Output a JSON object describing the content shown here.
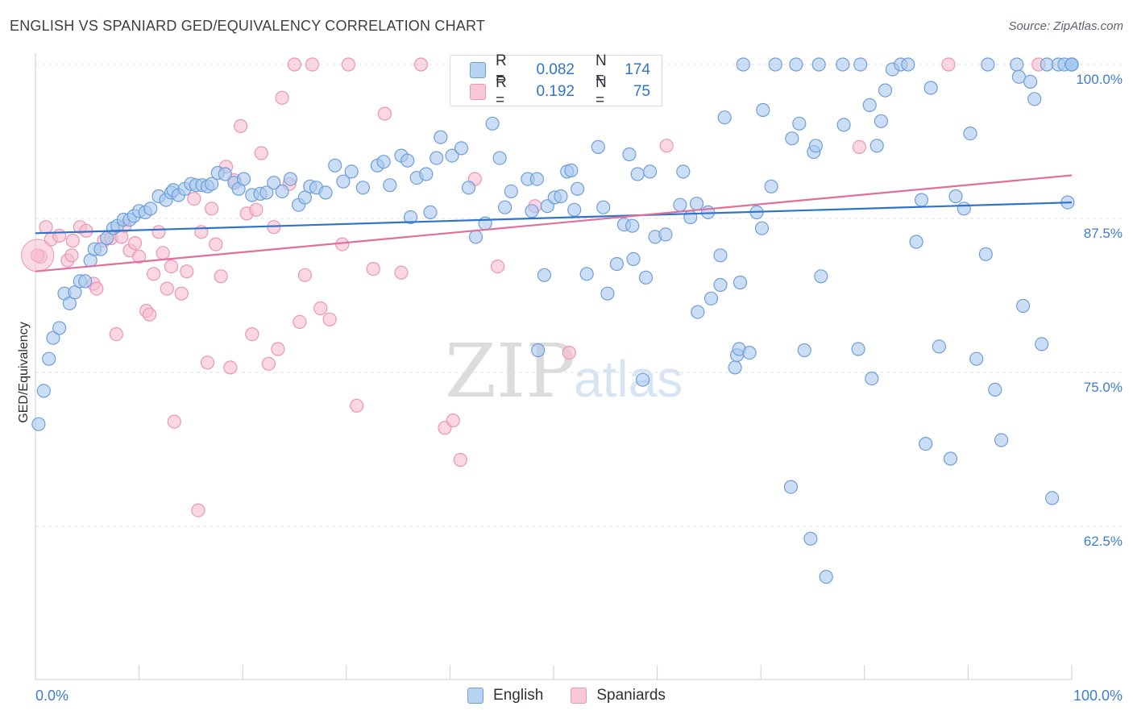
{
  "title": "ENGLISH VS SPANIARD GED/EQUIVALENCY CORRELATION CHART",
  "source": "Source: ZipAtlas.com",
  "watermark": {
    "zip": "ZIP",
    "atlas": "atlas"
  },
  "colors": {
    "english_fill": "#a9c8ee",
    "english_stroke": "#6e9fd8",
    "english_line": "#2f74cc",
    "spaniards_fill": "#f6bdd0",
    "spaniards_stroke": "#eb95b3",
    "spaniards_line": "#e0709a",
    "axis_text": "#3d7dd1",
    "grid": "#dde1e8"
  },
  "legend": {
    "items": [
      {
        "r_label": "R =",
        "r_value": "0.082",
        "n_label": "N =",
        "n_value": "174"
      },
      {
        "r_label": "R =",
        "r_value": "0.192",
        "n_label": "N =",
        "n_value": "75"
      }
    ]
  },
  "bottom_legend": {
    "english": "English",
    "spaniards": "Spaniards"
  },
  "chart_data": {
    "type": "scatter",
    "title": "ENGLISH VS SPANIARD GED/EQUIVALENCY CORRELATION CHART",
    "xlabel": "",
    "ylabel": "GED/Equivalency",
    "xlim": [
      0,
      100
    ],
    "ylim": [
      50,
      101
    ],
    "x_tick_labels": [
      "0.0%",
      "100.0%"
    ],
    "y_ticks": [
      62.5,
      75.0,
      87.5,
      100.0
    ],
    "y_tick_labels": [
      "62.5%",
      "75.0%",
      "87.5%",
      "100.0%"
    ],
    "grid": true,
    "legend_position": "top-center",
    "series": [
      {
        "name": "English",
        "r": 0.082,
        "n": 174,
        "trend": {
          "x": [
            0,
            100
          ],
          "y": [
            86.3,
            88.8
          ]
        },
        "points": [
          [
            0.3,
            70.8
          ],
          [
            0.8,
            73.5
          ],
          [
            1.3,
            76.1
          ],
          [
            1.7,
            77.8
          ],
          [
            2.3,
            78.6
          ],
          [
            2.8,
            81.4
          ],
          [
            3.3,
            80.6
          ],
          [
            3.8,
            81.5
          ],
          [
            4.3,
            82.4
          ],
          [
            4.8,
            82.4
          ],
          [
            5.3,
            84.1
          ],
          [
            5.7,
            85.0
          ],
          [
            6.3,
            85.0
          ],
          [
            6.9,
            85.9
          ],
          [
            7.5,
            86.7
          ],
          [
            7.9,
            86.9
          ],
          [
            8.5,
            87.4
          ],
          [
            9.1,
            87.4
          ],
          [
            9.5,
            87.7
          ],
          [
            10.0,
            88.1
          ],
          [
            10.6,
            88.0
          ],
          [
            11.1,
            88.3
          ],
          [
            11.9,
            89.3
          ],
          [
            12.6,
            89.0
          ],
          [
            13.1,
            89.6
          ],
          [
            13.3,
            89.8
          ],
          [
            13.8,
            89.4
          ],
          [
            14.4,
            89.9
          ],
          [
            15.0,
            90.3
          ],
          [
            15.5,
            90.2
          ],
          [
            16.1,
            90.2
          ],
          [
            16.6,
            90.1
          ],
          [
            17.0,
            90.3
          ],
          [
            17.6,
            91.2
          ],
          [
            18.3,
            91.1
          ],
          [
            19.2,
            90.4
          ],
          [
            19.6,
            89.9
          ],
          [
            20.1,
            90.7
          ],
          [
            20.9,
            89.4
          ],
          [
            21.7,
            89.5
          ],
          [
            22.3,
            89.6
          ],
          [
            23.0,
            90.4
          ],
          [
            23.8,
            89.7
          ],
          [
            24.6,
            90.7
          ],
          [
            25.4,
            88.6
          ],
          [
            26.0,
            89.2
          ],
          [
            26.5,
            90.1
          ],
          [
            27.1,
            90.0
          ],
          [
            28.0,
            89.6
          ],
          [
            28.9,
            91.8
          ],
          [
            29.7,
            90.5
          ],
          [
            30.5,
            91.3
          ],
          [
            31.6,
            90.0
          ],
          [
            33.0,
            91.8
          ],
          [
            33.6,
            92.1
          ],
          [
            34.2,
            90.2
          ],
          [
            35.3,
            92.6
          ],
          [
            35.9,
            92.2
          ],
          [
            36.2,
            87.6
          ],
          [
            36.8,
            90.8
          ],
          [
            37.7,
            91.1
          ],
          [
            38.1,
            88.0
          ],
          [
            38.7,
            92.4
          ],
          [
            39.1,
            94.1
          ],
          [
            40.2,
            92.6
          ],
          [
            41.1,
            93.2
          ],
          [
            41.8,
            90.0
          ],
          [
            42.5,
            86.0
          ],
          [
            43.4,
            87.1
          ],
          [
            44.1,
            95.2
          ],
          [
            44.8,
            92.4
          ],
          [
            45.3,
            88.4
          ],
          [
            45.9,
            89.7
          ],
          [
            47.5,
            90.7
          ],
          [
            47.9,
            88.1
          ],
          [
            48.4,
            90.7
          ],
          [
            48.5,
            76.8
          ],
          [
            49.1,
            82.9
          ],
          [
            49.4,
            88.5
          ],
          [
            50.1,
            89.2
          ],
          [
            50.7,
            89.3
          ],
          [
            51.3,
            91.3
          ],
          [
            51.7,
            91.4
          ],
          [
            52.0,
            88.2
          ],
          [
            52.3,
            89.9
          ],
          [
            53.2,
            83.0
          ],
          [
            54.3,
            93.3
          ],
          [
            54.8,
            88.4
          ],
          [
            55.2,
            81.4
          ],
          [
            56.1,
            83.8
          ],
          [
            56.8,
            87.0
          ],
          [
            57.3,
            92.7
          ],
          [
            57.6,
            86.9
          ],
          [
            57.7,
            84.2
          ],
          [
            58.1,
            91.1
          ],
          [
            58.6,
            74.4
          ],
          [
            58.9,
            82.7
          ],
          [
            59.3,
            91.3
          ],
          [
            59.8,
            86.0
          ],
          [
            60.8,
            86.2
          ],
          [
            62.2,
            88.6
          ],
          [
            62.5,
            91.3
          ],
          [
            63.2,
            87.6
          ],
          [
            63.8,
            88.7
          ],
          [
            63.9,
            79.9
          ],
          [
            64.9,
            88.0
          ],
          [
            65.2,
            81.0
          ],
          [
            66.1,
            82.1
          ],
          [
            66.1,
            84.5
          ],
          [
            66.5,
            95.7
          ],
          [
            67.5,
            75.4
          ],
          [
            67.7,
            76.4
          ],
          [
            67.9,
            76.9
          ],
          [
            68.0,
            82.3
          ],
          [
            68.3,
            100.0
          ],
          [
            68.9,
            76.6
          ],
          [
            69.6,
            88.0
          ],
          [
            70.1,
            86.7
          ],
          [
            70.2,
            96.3
          ],
          [
            71.0,
            90.1
          ],
          [
            71.4,
            100.0
          ],
          [
            72.9,
            65.7
          ],
          [
            73.0,
            94.0
          ],
          [
            73.4,
            100.0
          ],
          [
            73.7,
            95.2
          ],
          [
            74.2,
            76.8
          ],
          [
            74.8,
            61.5
          ],
          [
            75.1,
            92.9
          ],
          [
            75.3,
            93.4
          ],
          [
            75.6,
            100.0
          ],
          [
            75.8,
            82.8
          ],
          [
            76.3,
            58.4
          ],
          [
            77.9,
            100.0
          ],
          [
            78.0,
            95.1
          ],
          [
            79.4,
            76.9
          ],
          [
            79.6,
            100.0
          ],
          [
            80.5,
            96.7
          ],
          [
            80.7,
            74.5
          ],
          [
            81.2,
            93.4
          ],
          [
            81.6,
            95.4
          ],
          [
            82.0,
            97.9
          ],
          [
            82.7,
            99.6
          ],
          [
            83.5,
            100.0
          ],
          [
            84.2,
            100.0
          ],
          [
            85.0,
            85.6
          ],
          [
            85.5,
            89.0
          ],
          [
            85.9,
            69.2
          ],
          [
            86.4,
            98.1
          ],
          [
            87.2,
            77.1
          ],
          [
            88.3,
            68.0
          ],
          [
            88.8,
            89.3
          ],
          [
            89.6,
            88.3
          ],
          [
            90.2,
            94.4
          ],
          [
            90.8,
            76.1
          ],
          [
            91.7,
            84.6
          ],
          [
            91.9,
            100.0
          ],
          [
            92.6,
            73.6
          ],
          [
            93.2,
            69.5
          ],
          [
            94.7,
            100.0
          ],
          [
            94.9,
            99.0
          ],
          [
            95.3,
            80.4
          ],
          [
            96.0,
            98.6
          ],
          [
            96.4,
            97.2
          ],
          [
            97.1,
            77.3
          ],
          [
            97.6,
            100.0
          ],
          [
            98.1,
            64.8
          ],
          [
            98.7,
            100.0
          ],
          [
            99.3,
            100.0
          ],
          [
            99.6,
            88.8
          ],
          [
            100.0,
            100.0
          ],
          [
            100.0,
            100.0
          ],
          [
            100.0,
            100.0
          ],
          [
            100.0,
            100.0
          ],
          [
            100.0,
            100.0
          ]
        ]
      },
      {
        "name": "Spaniards",
        "r": 0.192,
        "n": 75,
        "trend": {
          "x": [
            0,
            100
          ],
          "y": [
            83.2,
            91.0
          ]
        },
        "points": [
          [
            0.5,
            84.4
          ],
          [
            1.0,
            86.8
          ],
          [
            1.5,
            85.8
          ],
          [
            2.3,
            86.1
          ],
          [
            3.1,
            84.1
          ],
          [
            3.5,
            84.5
          ],
          [
            3.6,
            85.7
          ],
          [
            4.3,
            86.8
          ],
          [
            4.9,
            86.5
          ],
          [
            5.6,
            82.2
          ],
          [
            5.9,
            81.8
          ],
          [
            6.6,
            85.7
          ],
          [
            7.3,
            85.9
          ],
          [
            7.8,
            78.1
          ],
          [
            8.3,
            86.0
          ],
          [
            8.6,
            86.9
          ],
          [
            9.1,
            84.9
          ],
          [
            9.6,
            85.5
          ],
          [
            10.0,
            84.4
          ],
          [
            10.7,
            80.0
          ],
          [
            11.0,
            79.7
          ],
          [
            11.4,
            83.0
          ],
          [
            11.9,
            86.4
          ],
          [
            12.3,
            84.7
          ],
          [
            12.7,
            81.8
          ],
          [
            13.1,
            83.6
          ],
          [
            13.4,
            71.0
          ],
          [
            14.1,
            81.4
          ],
          [
            14.6,
            83.2
          ],
          [
            15.3,
            89.1
          ],
          [
            15.7,
            63.8
          ],
          [
            16.0,
            86.4
          ],
          [
            16.6,
            75.8
          ],
          [
            17.0,
            88.3
          ],
          [
            17.4,
            85.4
          ],
          [
            17.9,
            82.8
          ],
          [
            18.4,
            91.7
          ],
          [
            18.8,
            75.4
          ],
          [
            19.2,
            90.6
          ],
          [
            19.8,
            95.0
          ],
          [
            20.4,
            87.9
          ],
          [
            20.9,
            78.1
          ],
          [
            21.3,
            88.2
          ],
          [
            21.8,
            92.8
          ],
          [
            22.5,
            75.7
          ],
          [
            23.0,
            86.8
          ],
          [
            23.4,
            76.9
          ],
          [
            23.8,
            97.3
          ],
          [
            24.5,
            90.3
          ],
          [
            25.0,
            100.0
          ],
          [
            25.5,
            79.1
          ],
          [
            26.0,
            82.9
          ],
          [
            26.7,
            100.0
          ],
          [
            27.5,
            80.2
          ],
          [
            28.4,
            79.3
          ],
          [
            29.6,
            85.4
          ],
          [
            30.2,
            100.0
          ],
          [
            31.0,
            72.3
          ],
          [
            32.6,
            83.4
          ],
          [
            33.7,
            96.0
          ],
          [
            35.3,
            83.1
          ],
          [
            37.2,
            100.0
          ],
          [
            39.5,
            70.5
          ],
          [
            40.3,
            71.1
          ],
          [
            41.0,
            67.9
          ],
          [
            42.4,
            90.7
          ],
          [
            44.6,
            83.6
          ],
          [
            48.2,
            88.5
          ],
          [
            51.5,
            76.6
          ],
          [
            59.3,
            100.0
          ],
          [
            60.9,
            93.4
          ],
          [
            79.5,
            93.3
          ],
          [
            88.1,
            100.0
          ],
          [
            96.8,
            100.0
          ],
          [
            0.2,
            84.5
          ]
        ]
      }
    ]
  }
}
